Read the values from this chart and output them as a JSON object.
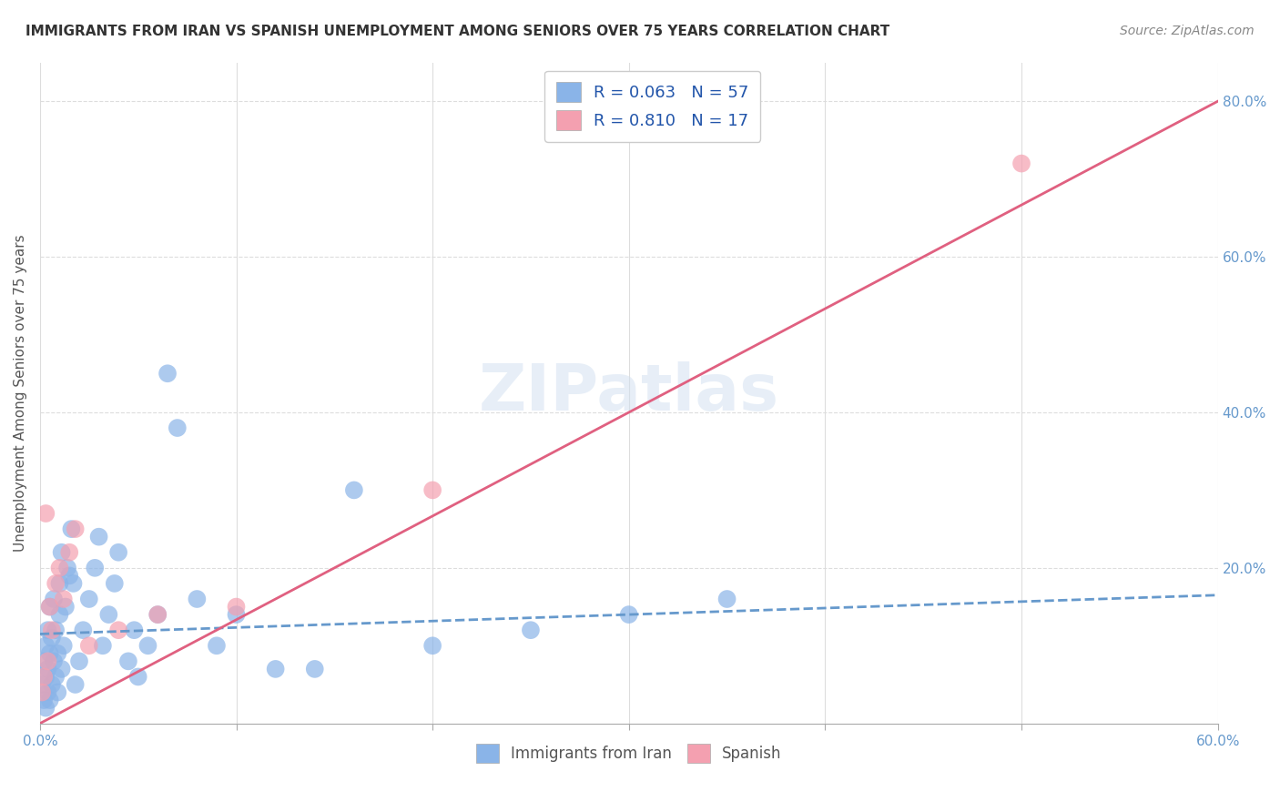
{
  "title": "IMMIGRANTS FROM IRAN VS SPANISH UNEMPLOYMENT AMONG SENIORS OVER 75 YEARS CORRELATION CHART",
  "source": "Source: ZipAtlas.com",
  "xlabel": "",
  "ylabel": "Unemployment Among Seniors over 75 years",
  "xlim": [
    0.0,
    0.6
  ],
  "ylim": [
    0.0,
    0.85
  ],
  "x_ticks": [
    0.0,
    0.1,
    0.2,
    0.3,
    0.4,
    0.5,
    0.6
  ],
  "x_tick_labels": [
    "0.0%",
    "",
    "",
    "",
    "",
    "",
    "60.0%"
  ],
  "y_ticks_right": [
    0.0,
    0.2,
    0.4,
    0.6,
    0.8
  ],
  "y_tick_labels_right": [
    "",
    "20.0%",
    "40.0%",
    "60.0%",
    "80.0%"
  ],
  "legend_r1": "R = 0.063",
  "legend_n1": "N = 57",
  "legend_r2": "R = 0.810",
  "legend_n2": "N = 17",
  "color_iran": "#8ab4e8",
  "color_spanish": "#f4a0b0",
  "color_iran_line": "#6699cc",
  "color_spanish_line": "#e06080",
  "watermark": "ZIPatlas",
  "scatter_iran_x": [
    0.001,
    0.002,
    0.002,
    0.003,
    0.003,
    0.003,
    0.004,
    0.004,
    0.004,
    0.005,
    0.005,
    0.005,
    0.006,
    0.006,
    0.007,
    0.007,
    0.008,
    0.008,
    0.009,
    0.009,
    0.01,
    0.01,
    0.011,
    0.011,
    0.012,
    0.013,
    0.014,
    0.015,
    0.016,
    0.017,
    0.018,
    0.02,
    0.022,
    0.025,
    0.028,
    0.03,
    0.032,
    0.035,
    0.038,
    0.04,
    0.045,
    0.048,
    0.05,
    0.055,
    0.06,
    0.065,
    0.07,
    0.08,
    0.09,
    0.1,
    0.12,
    0.14,
    0.16,
    0.2,
    0.25,
    0.3,
    0.35
  ],
  "scatter_iran_y": [
    0.05,
    0.03,
    0.08,
    0.02,
    0.06,
    0.1,
    0.04,
    0.07,
    0.12,
    0.03,
    0.09,
    0.15,
    0.05,
    0.11,
    0.08,
    0.16,
    0.06,
    0.12,
    0.04,
    0.09,
    0.14,
    0.18,
    0.07,
    0.22,
    0.1,
    0.15,
    0.2,
    0.19,
    0.25,
    0.18,
    0.05,
    0.08,
    0.12,
    0.16,
    0.2,
    0.24,
    0.1,
    0.14,
    0.18,
    0.22,
    0.08,
    0.12,
    0.06,
    0.1,
    0.14,
    0.45,
    0.38,
    0.16,
    0.1,
    0.14,
    0.07,
    0.07,
    0.3,
    0.1,
    0.12,
    0.14,
    0.16
  ],
  "scatter_spanish_x": [
    0.001,
    0.002,
    0.003,
    0.004,
    0.005,
    0.006,
    0.008,
    0.01,
    0.012,
    0.015,
    0.018,
    0.025,
    0.04,
    0.06,
    0.1,
    0.2,
    0.5
  ],
  "scatter_spanish_y": [
    0.04,
    0.06,
    0.27,
    0.08,
    0.15,
    0.12,
    0.18,
    0.2,
    0.16,
    0.22,
    0.25,
    0.1,
    0.12,
    0.14,
    0.15,
    0.3,
    0.72
  ],
  "iran_line_x": [
    0.0,
    0.6
  ],
  "iran_line_y": [
    0.115,
    0.165
  ],
  "spanish_line_x": [
    0.0,
    0.6
  ],
  "spanish_line_y": [
    0.0,
    0.8
  ],
  "background_color": "#ffffff",
  "grid_color": "#dddddd"
}
